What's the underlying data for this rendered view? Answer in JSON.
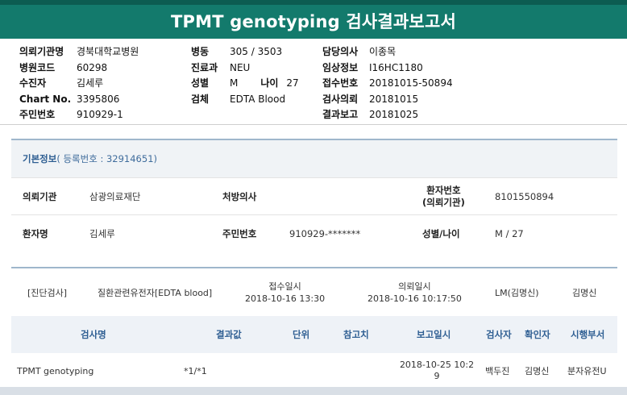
{
  "title": "TPMT genotyping 검사결과보고서",
  "header_info": {
    "col1": [
      {
        "label": "의뢰기관명",
        "value": "경북대학교병원"
      },
      {
        "label": "병원코드",
        "value": "60298"
      },
      {
        "label": "수진자",
        "value": "김세루"
      },
      {
        "label": "Chart No.",
        "value": "3395806"
      },
      {
        "label": "주민번호",
        "value": "910929-1"
      }
    ],
    "col2": [
      {
        "label": "병동",
        "value": "305 / 3503"
      },
      {
        "label": "진료과",
        "value": "NEU"
      },
      {
        "label": "성별",
        "value": "M",
        "label2": "나이",
        "value2": "27"
      },
      {
        "label": "검체",
        "value": "EDTA Blood"
      }
    ],
    "col3": [
      {
        "label": "담당의사",
        "value": "이종목"
      },
      {
        "label": "임상정보",
        "value": "I16HC1180"
      },
      {
        "label": "접수번호",
        "value": "20181015-50894"
      },
      {
        "label": "검사의뢰",
        "value": "20181015"
      },
      {
        "label": "결과보고",
        "value": "20181025"
      }
    ]
  },
  "basic": {
    "heading": "기본정보",
    "reg_label": "( 등록번호 : 32914651)",
    "row1": {
      "org_label": "의뢰기관",
      "org_value": "삼광의료재단",
      "doctor_label": "처방의사",
      "patno_label_1": "환자번호",
      "patno_label_2": "(의뢰기관)",
      "patno_value": "8101550894"
    },
    "row2": {
      "name_label": "환자명",
      "name_value": "김세루",
      "ssn_label": "주민번호",
      "ssn_value": "910929-*******",
      "sexage_label": "성별/나이",
      "sexage_value": "M / 27"
    }
  },
  "diagnosis": {
    "tag": "[진단검사]",
    "test": "질환관련유전자[EDTA blood]",
    "received_label": "접수일시",
    "received_value": "2018-10-16 13:30",
    "requested_label": "의뢰일시",
    "requested_value": "2018-10-16 10:17:50",
    "lab": "LM(김명신)",
    "person": "김명신"
  },
  "table": {
    "headers": [
      "검사명",
      "결과값",
      "단위",
      "참고치",
      "보고일시",
      "검사자",
      "확인자",
      "시행부서"
    ],
    "rows": [
      {
        "name": "TPMT genotyping",
        "result": "*1/*1",
        "unit": "",
        "reference": "",
        "report_line1": "2018-10-25 10:2",
        "report_line2": "9",
        "tester": "백두진",
        "checker": "김명신",
        "dept": "분자유전U"
      }
    ]
  }
}
